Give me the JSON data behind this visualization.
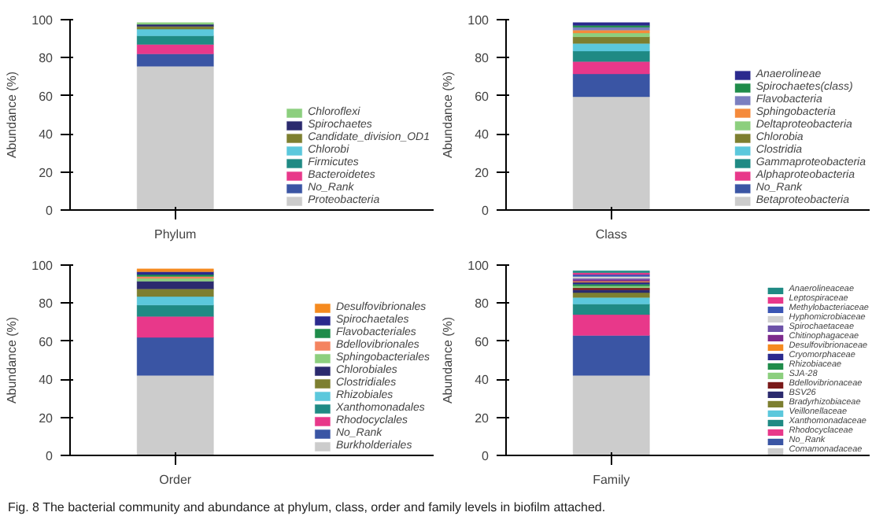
{
  "chart_data": [
    {
      "type": "bar",
      "stacked": true,
      "categories": [
        "Phylum"
      ],
      "ylabel": "Abundance (%)",
      "ylim": [
        0,
        100
      ],
      "yticks": [
        0,
        20,
        40,
        60,
        80,
        100
      ],
      "grid": false,
      "legend": "right",
      "annotations": [
        "Fig. 8    The bacterial community and abundance at phylum, class, order and family levels in biofilm attached."
      ],
      "series": [
        {
          "name": "Proteobacteria",
          "color": "#cccccc",
          "values": [
            75.5
          ]
        },
        {
          "name": "No_Rank",
          "color": "#3a55a4",
          "values": [
            6.5
          ]
        },
        {
          "name": "Bacteroidetes",
          "color": "#e8388a",
          "values": [
            5
          ]
        },
        {
          "name": "Firmicutes",
          "color": "#1f8a84",
          "values": [
            4.5
          ]
        },
        {
          "name": "Chlorobi",
          "color": "#5bc8dc",
          "values": [
            3.5
          ]
        },
        {
          "name": "Candidate_division_OD1",
          "color": "#7d7f30",
          "values": [
            1.5
          ]
        },
        {
          "name": "Spirochaetes",
          "color": "#2b2a6e",
          "values": [
            1
          ]
        },
        {
          "name": "Chloroflexi",
          "color": "#8ccf7e",
          "values": [
            1
          ]
        }
      ]
    },
    {
      "type": "bar",
      "stacked": true,
      "categories": [
        "Class"
      ],
      "ylabel": "Abundance (%)",
      "ylim": [
        0,
        100
      ],
      "yticks": [
        0,
        20,
        40,
        60,
        80,
        100
      ],
      "grid": false,
      "legend": "right",
      "series": [
        {
          "name": "Betaproteobacteria",
          "color": "#cccccc",
          "values": [
            59.5
          ]
        },
        {
          "name": "No_Rank",
          "color": "#3a55a4",
          "values": [
            12
          ]
        },
        {
          "name": "Alphaproteobacteria",
          "color": "#e8388a",
          "values": [
            6.5
          ]
        },
        {
          "name": "Gammaproteobacteria",
          "color": "#1f8a84",
          "values": [
            5.5
          ]
        },
        {
          "name": "Clostridia",
          "color": "#5bc8dc",
          "values": [
            4
          ]
        },
        {
          "name": "Chlorobia",
          "color": "#7d7f30",
          "values": [
            3.5
          ]
        },
        {
          "name": "Deltaproteobacteria",
          "color": "#8ccf7e",
          "values": [
            2
          ]
        },
        {
          "name": "Sphingobacteria",
          "color": "#f58a3b",
          "values": [
            1.5
          ]
        },
        {
          "name": "Flavobacteria",
          "color": "#7b7fc0",
          "values": [
            1.5
          ]
        },
        {
          "name": "Spirochaetes(class)",
          "color": "#1f8c4a",
          "values": [
            1
          ]
        },
        {
          "name": "Anaerolineae",
          "color": "#2b2a8e",
          "values": [
            1.5
          ]
        }
      ]
    },
    {
      "type": "bar",
      "stacked": true,
      "categories": [
        "Order"
      ],
      "ylabel": "Abundance (%)",
      "ylim": [
        0,
        100
      ],
      "yticks": [
        0,
        20,
        40,
        60,
        80,
        100
      ],
      "grid": false,
      "legend": "right",
      "series": [
        {
          "name": "Burkholderiales",
          "color": "#cccccc",
          "values": [
            42
          ]
        },
        {
          "name": "No_Rank",
          "color": "#3a55a4",
          "values": [
            20
          ]
        },
        {
          "name": "Rhodocyclales",
          "color": "#e8388a",
          "values": [
            11
          ]
        },
        {
          "name": "Xanthomonadales",
          "color": "#1f8a84",
          "values": [
            6
          ]
        },
        {
          "name": "Rhizobiales",
          "color": "#5bc8dc",
          "values": [
            4.5
          ]
        },
        {
          "name": "Clostridiales",
          "color": "#7d7f30",
          "values": [
            4
          ]
        },
        {
          "name": "Chlorobiales",
          "color": "#2b2a6e",
          "values": [
            4
          ]
        },
        {
          "name": "Sphingobacteriales",
          "color": "#8ccf7e",
          "values": [
            1.5
          ]
        },
        {
          "name": "Bdellovibrionales",
          "color": "#f4845f",
          "values": [
            1
          ]
        },
        {
          "name": "Flavobacteriales",
          "color": "#1f8c4a",
          "values": [
            1
          ]
        },
        {
          "name": "Spirochaetales",
          "color": "#2b2a8e",
          "values": [
            1.5
          ]
        },
        {
          "name": "Desulfovibrionales",
          "color": "#f58a1f",
          "values": [
            1.5
          ]
        }
      ]
    },
    {
      "type": "bar",
      "stacked": true,
      "categories": [
        "Family"
      ],
      "ylabel": "Abundance (%)",
      "ylim": [
        0,
        100
      ],
      "yticks": [
        0,
        20,
        40,
        60,
        80,
        100
      ],
      "grid": false,
      "legend": "right",
      "series": [
        {
          "name": "Comamonadaceae",
          "color": "#cccccc",
          "values": [
            42
          ]
        },
        {
          "name": "No_Rank",
          "color": "#3a55a4",
          "values": [
            21
          ]
        },
        {
          "name": "Rhodocyclaceae",
          "color": "#e8388a",
          "values": [
            11
          ]
        },
        {
          "name": "Xanthomonadaceae",
          "color": "#1f8a84",
          "values": [
            5.5
          ]
        },
        {
          "name": "Veillonellaceae",
          "color": "#5bc8dc",
          "values": [
            3.5
          ]
        },
        {
          "name": "Bradyrhizobiaceae",
          "color": "#7d7f30",
          "values": [
            2.5
          ]
        },
        {
          "name": "BSV26",
          "color": "#2b2a6e",
          "values": [
            1.5
          ]
        },
        {
          "name": "Bdellovibrionaceae",
          "color": "#7a1a1a",
          "values": [
            1
          ]
        },
        {
          "name": "SJA-28",
          "color": "#8ccf7e",
          "values": [
            1
          ]
        },
        {
          "name": "Rhizobiaceae",
          "color": "#1f8c4a",
          "values": [
            1
          ]
        },
        {
          "name": "Cryomorphaceae",
          "color": "#2b2a8e",
          "values": [
            1
          ]
        },
        {
          "name": "Desulfovibrionaceae",
          "color": "#f58a1f",
          "values": [
            0.5
          ]
        },
        {
          "name": "Chitinophagaceae",
          "color": "#7d2a8c",
          "values": [
            1
          ]
        },
        {
          "name": "Spirochaetaceae",
          "color": "#6d52a8",
          "values": [
            0.5
          ]
        },
        {
          "name": "Hyphomicrobiaceae",
          "color": "#d0d0d0",
          "values": [
            1
          ]
        },
        {
          "name": "Methylobacteriaceae",
          "color": "#3a55b4",
          "values": [
            1
          ]
        },
        {
          "name": "Leptospiraceae",
          "color": "#e8388a",
          "values": [
            1
          ]
        },
        {
          "name": "Anaerolineaceae",
          "color": "#1f8a84",
          "values": [
            1
          ]
        }
      ]
    }
  ]
}
